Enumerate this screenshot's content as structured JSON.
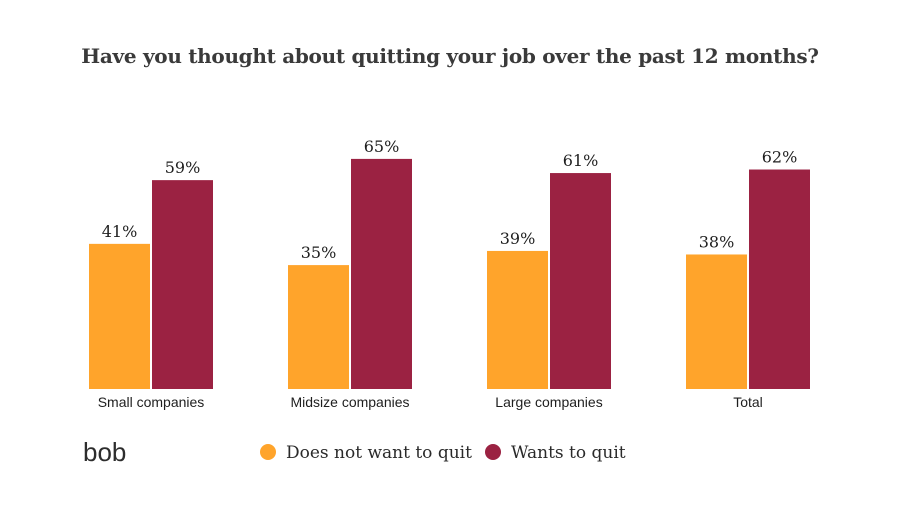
{
  "chart_data": {
    "type": "bar",
    "title": "Have you thought about quitting your job over the past 12 months?",
    "categories": [
      "Small companies",
      "Midsize companies",
      "Large companies",
      "Total"
    ],
    "series": [
      {
        "name": "Does not want to quit",
        "color": "#FFA42B",
        "values": [
          41,
          35,
          39,
          38
        ]
      },
      {
        "name": "Wants to quit",
        "color": "#9B2242",
        "values": [
          59,
          65,
          61,
          62
        ]
      }
    ],
    "value_suffix": "%",
    "ylim": [
      0,
      100
    ],
    "grid": false,
    "legend_position": "bottom"
  },
  "brand": {
    "logo_text": "bob"
  }
}
